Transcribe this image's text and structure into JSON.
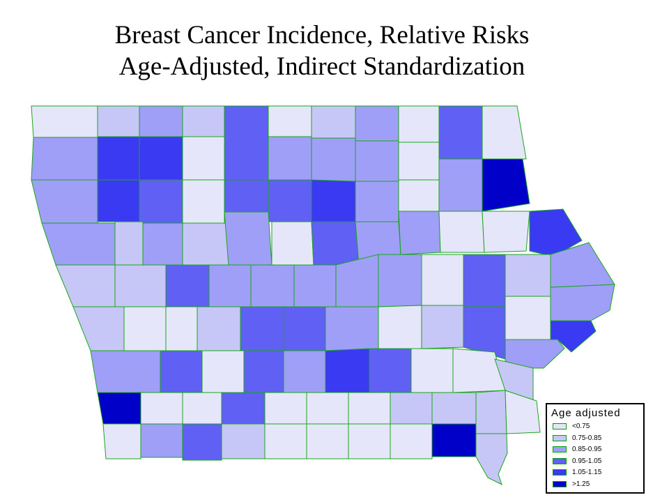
{
  "title": {
    "line1": "Breast Cancer Incidence, Relative Risks",
    "line2": "Age-Adjusted, Indirect Standardization"
  },
  "legend": {
    "title": "Age adjusted",
    "items": [
      {
        "label": "<0.75",
        "color": "#e6e6fa"
      },
      {
        "label": "0.75-0.85",
        "color": "#c6c6f7"
      },
      {
        "label": "0.85-0.95",
        "color": "#9f9ff7"
      },
      {
        "label": "0.95-1.05",
        "color": "#6060f4"
      },
      {
        "label": "1.05-1.15",
        "color": "#3a3af2"
      },
      {
        "label": ">1.25",
        "color": "#0000c8"
      }
    ]
  },
  "colors": {
    "border": "#19a619",
    "background": "#ffffff"
  },
  "map": {
    "category_counts": {
      "<0.75": 27,
      "0.75-0.85": 19,
      "0.85-0.95": 25,
      "0.95-1.05": 19,
      "1.05-1.15": 6,
      ">1.25": 3
    }
  }
}
